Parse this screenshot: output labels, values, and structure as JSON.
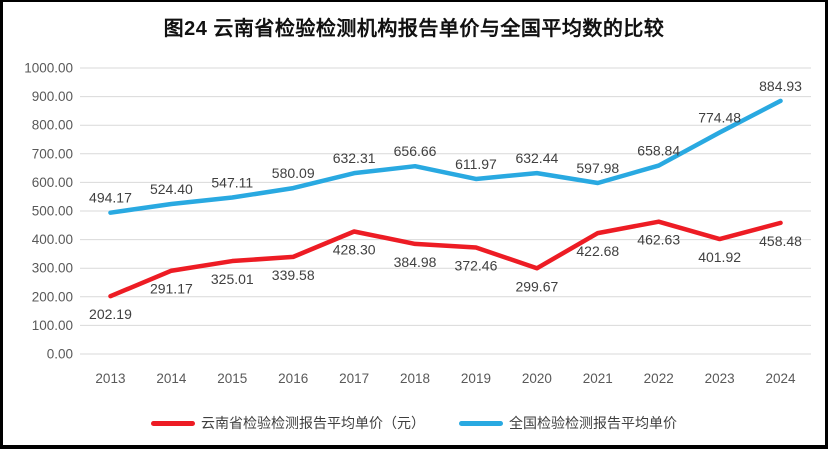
{
  "chart_data": {
    "type": "line",
    "title": "图24  云南省检验检测机构报告单价与全国平均数的比较",
    "categories": [
      "2013",
      "2014",
      "2015",
      "2016",
      "2017",
      "2018",
      "2019",
      "2020",
      "2021",
      "2022",
      "2023",
      "2024"
    ],
    "series": [
      {
        "name": "云南省检验检测报告平均单价（元）",
        "color": "#ed1c24",
        "label_position": "below",
        "values": [
          202.19,
          291.17,
          325.01,
          339.58,
          428.3,
          384.98,
          372.46,
          299.67,
          422.68,
          462.63,
          401.92,
          458.48
        ]
      },
      {
        "name": "全国检验检测报告平均单价",
        "color": "#29a9e1",
        "label_position": "above",
        "values": [
          494.17,
          524.4,
          547.11,
          580.09,
          632.31,
          656.66,
          611.97,
          632.44,
          597.98,
          658.84,
          774.48,
          884.93
        ]
      }
    ],
    "ylim": [
      0,
      1000
    ],
    "ytick_step": 100,
    "ytick_decimals": 2,
    "grid": true,
    "legend_position": "bottom",
    "xlabel": "",
    "ylabel": "",
    "colors": {
      "gridline": "#d9d9d9",
      "tick_text": "#595959",
      "data_label_text": "#404040",
      "frame_border": "#000000"
    }
  }
}
